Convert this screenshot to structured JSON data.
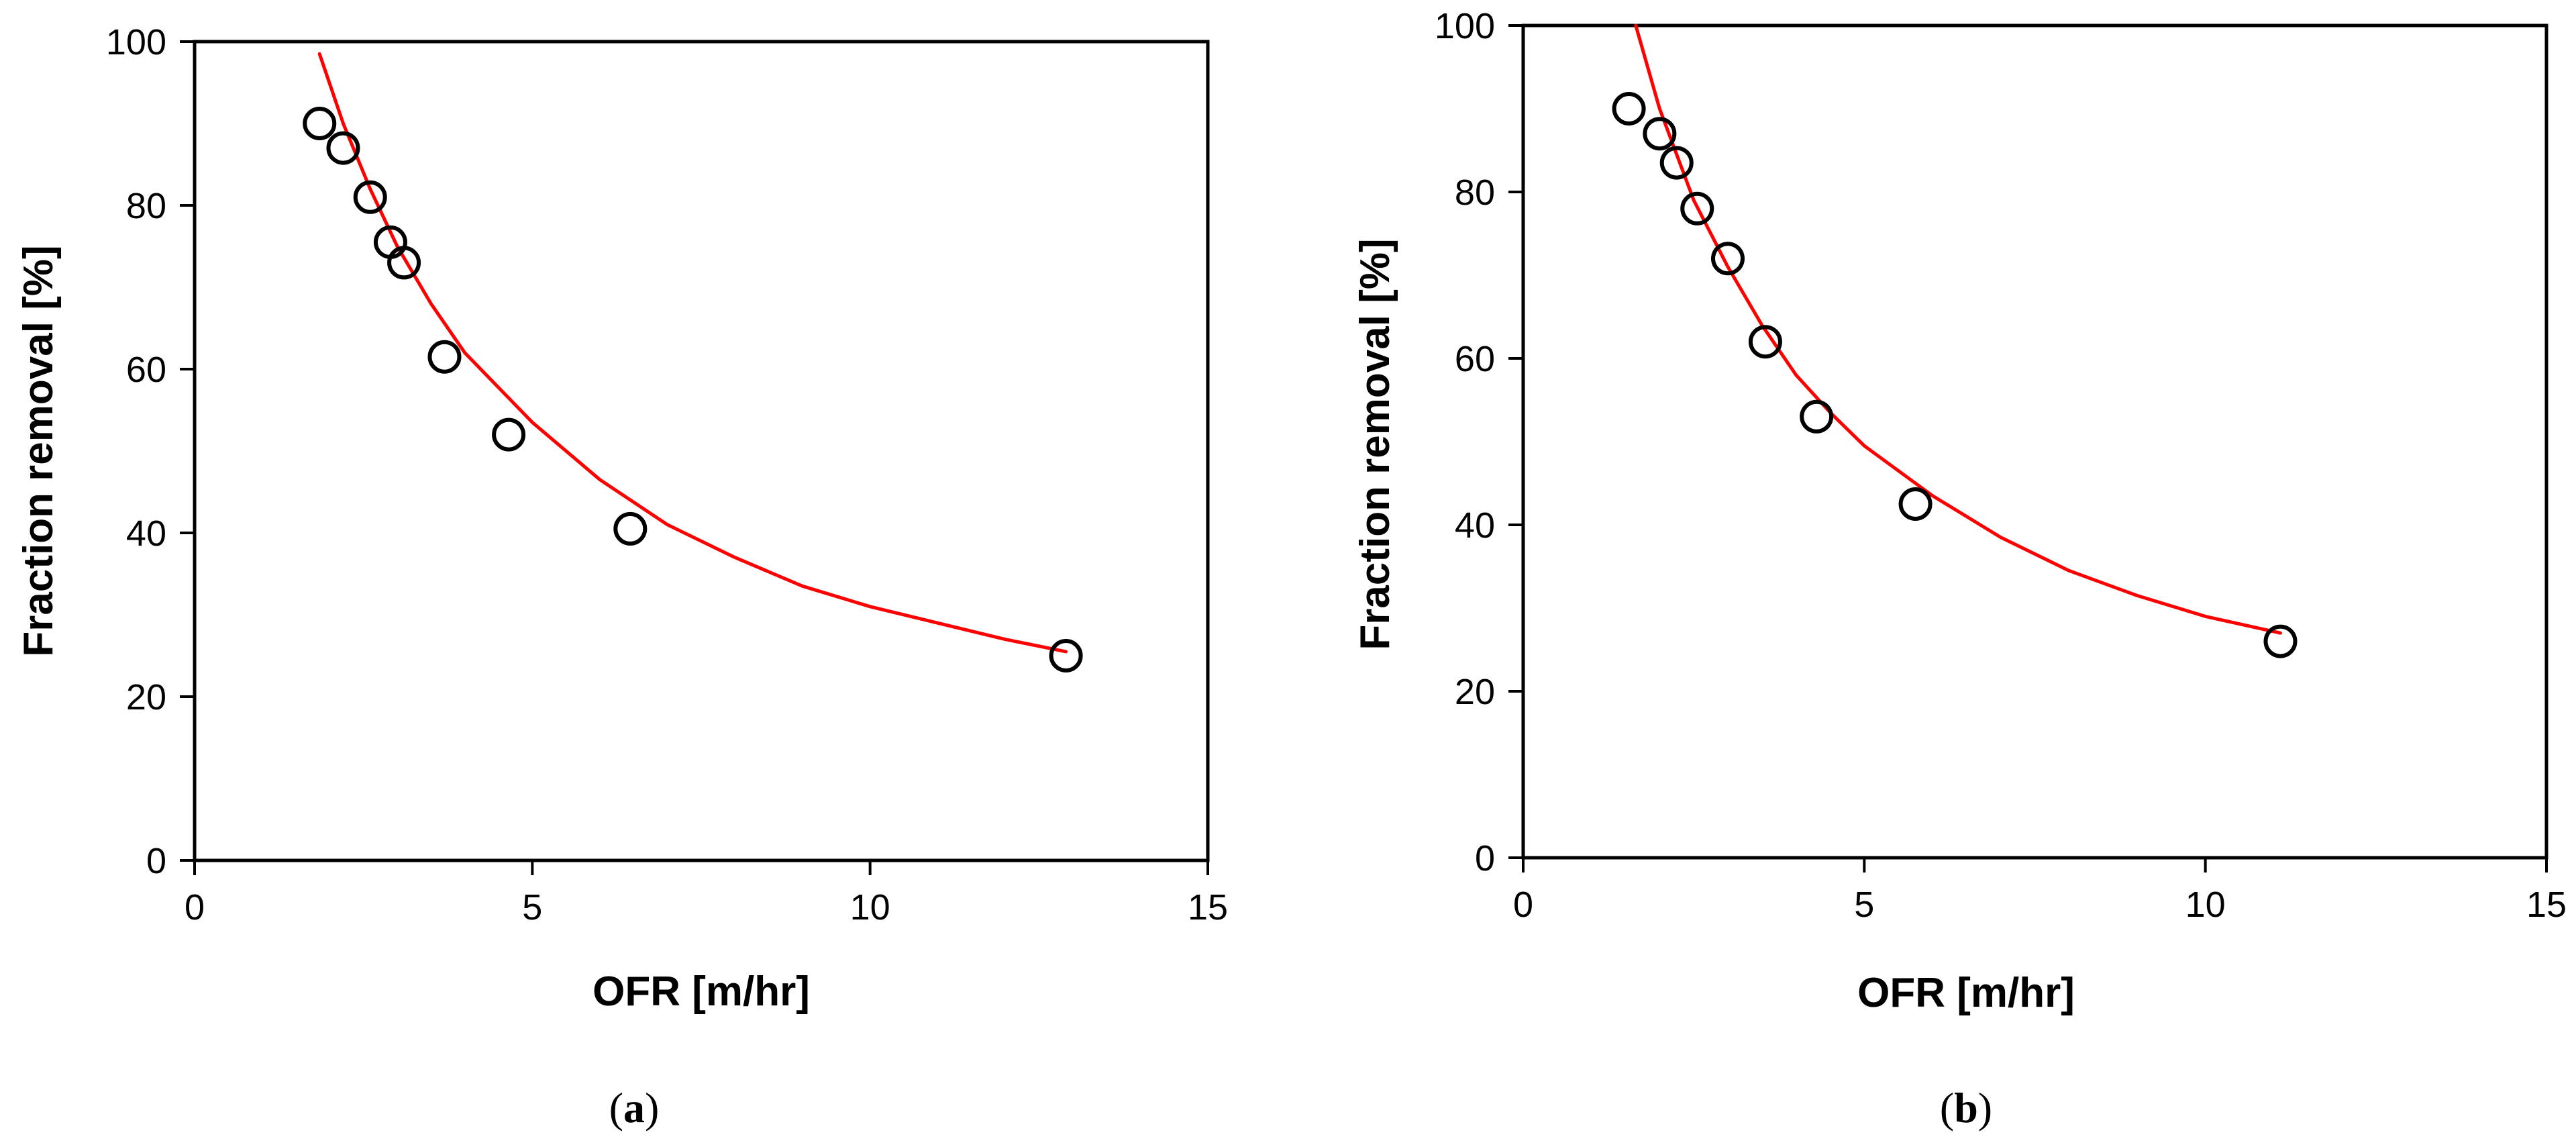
{
  "chart_data": [
    {
      "panel_label": "a",
      "type": "scatter",
      "xlabel": "OFR [m/hr]",
      "ylabel": "Fraction removal [%]",
      "xlim": [
        0,
        15
      ],
      "ylim": [
        0,
        100
      ],
      "x_ticks": [
        0,
        5,
        10,
        15
      ],
      "y_ticks": [
        0,
        20,
        40,
        60,
        80,
        100
      ],
      "grid": false,
      "legend": "none",
      "points": [
        {
          "x": 1.85,
          "y": 90.0
        },
        {
          "x": 2.2,
          "y": 87.0
        },
        {
          "x": 2.6,
          "y": 81.0
        },
        {
          "x": 2.9,
          "y": 75.5
        },
        {
          "x": 3.1,
          "y": 73.0
        },
        {
          "x": 3.7,
          "y": 61.5
        },
        {
          "x": 4.65,
          "y": 52.0
        },
        {
          "x": 6.45,
          "y": 40.5
        },
        {
          "x": 12.9,
          "y": 25.0
        }
      ],
      "fit_curve": {
        "color": "#ff0000",
        "points": [
          {
            "x": 1.85,
            "y": 98.5
          },
          {
            "x": 2.2,
            "y": 90.0
          },
          {
            "x": 2.6,
            "y": 82.0
          },
          {
            "x": 3.0,
            "y": 75.0
          },
          {
            "x": 3.5,
            "y": 68.0
          },
          {
            "x": 4.0,
            "y": 62.0
          },
          {
            "x": 5.0,
            "y": 53.5
          },
          {
            "x": 6.0,
            "y": 46.5
          },
          {
            "x": 7.0,
            "y": 41.0
          },
          {
            "x": 8.0,
            "y": 37.0
          },
          {
            "x": 9.0,
            "y": 33.5
          },
          {
            "x": 10.0,
            "y": 31.0
          },
          {
            "x": 11.0,
            "y": 29.0
          },
          {
            "x": 12.0,
            "y": 27.0
          },
          {
            "x": 12.9,
            "y": 25.5
          }
        ]
      },
      "marker_color": "#000000"
    },
    {
      "panel_label": "b",
      "type": "scatter",
      "xlabel": "OFR [m/hr]",
      "ylabel": "Fraction removal [%]",
      "xlim": [
        0,
        15
      ],
      "ylim": [
        0,
        100
      ],
      "x_ticks": [
        0,
        5,
        10,
        15
      ],
      "y_ticks": [
        0,
        20,
        40,
        60,
        80,
        100
      ],
      "grid": false,
      "legend": "none",
      "points": [
        {
          "x": 1.55,
          "y": 90.0
        },
        {
          "x": 2.0,
          "y": 87.0
        },
        {
          "x": 2.25,
          "y": 83.5
        },
        {
          "x": 2.55,
          "y": 78.0
        },
        {
          "x": 3.0,
          "y": 72.0
        },
        {
          "x": 3.55,
          "y": 62.0
        },
        {
          "x": 4.3,
          "y": 53.0
        },
        {
          "x": 5.75,
          "y": 42.5
        },
        {
          "x": 11.1,
          "y": 26.0
        }
      ],
      "fit_curve": {
        "color": "#ff0000",
        "points": [
          {
            "x": 1.65,
            "y": 100.0
          },
          {
            "x": 2.0,
            "y": 90.0
          },
          {
            "x": 2.5,
            "y": 79.0
          },
          {
            "x": 3.0,
            "y": 71.0
          },
          {
            "x": 3.5,
            "y": 64.0
          },
          {
            "x": 4.0,
            "y": 58.0
          },
          {
            "x": 4.5,
            "y": 53.5
          },
          {
            "x": 5.0,
            "y": 49.5
          },
          {
            "x": 6.0,
            "y": 43.5
          },
          {
            "x": 7.0,
            "y": 38.5
          },
          {
            "x": 8.0,
            "y": 34.5
          },
          {
            "x": 9.0,
            "y": 31.5
          },
          {
            "x": 10.0,
            "y": 29.0
          },
          {
            "x": 11.1,
            "y": 27.0
          }
        ]
      },
      "marker_color": "#000000"
    }
  ]
}
